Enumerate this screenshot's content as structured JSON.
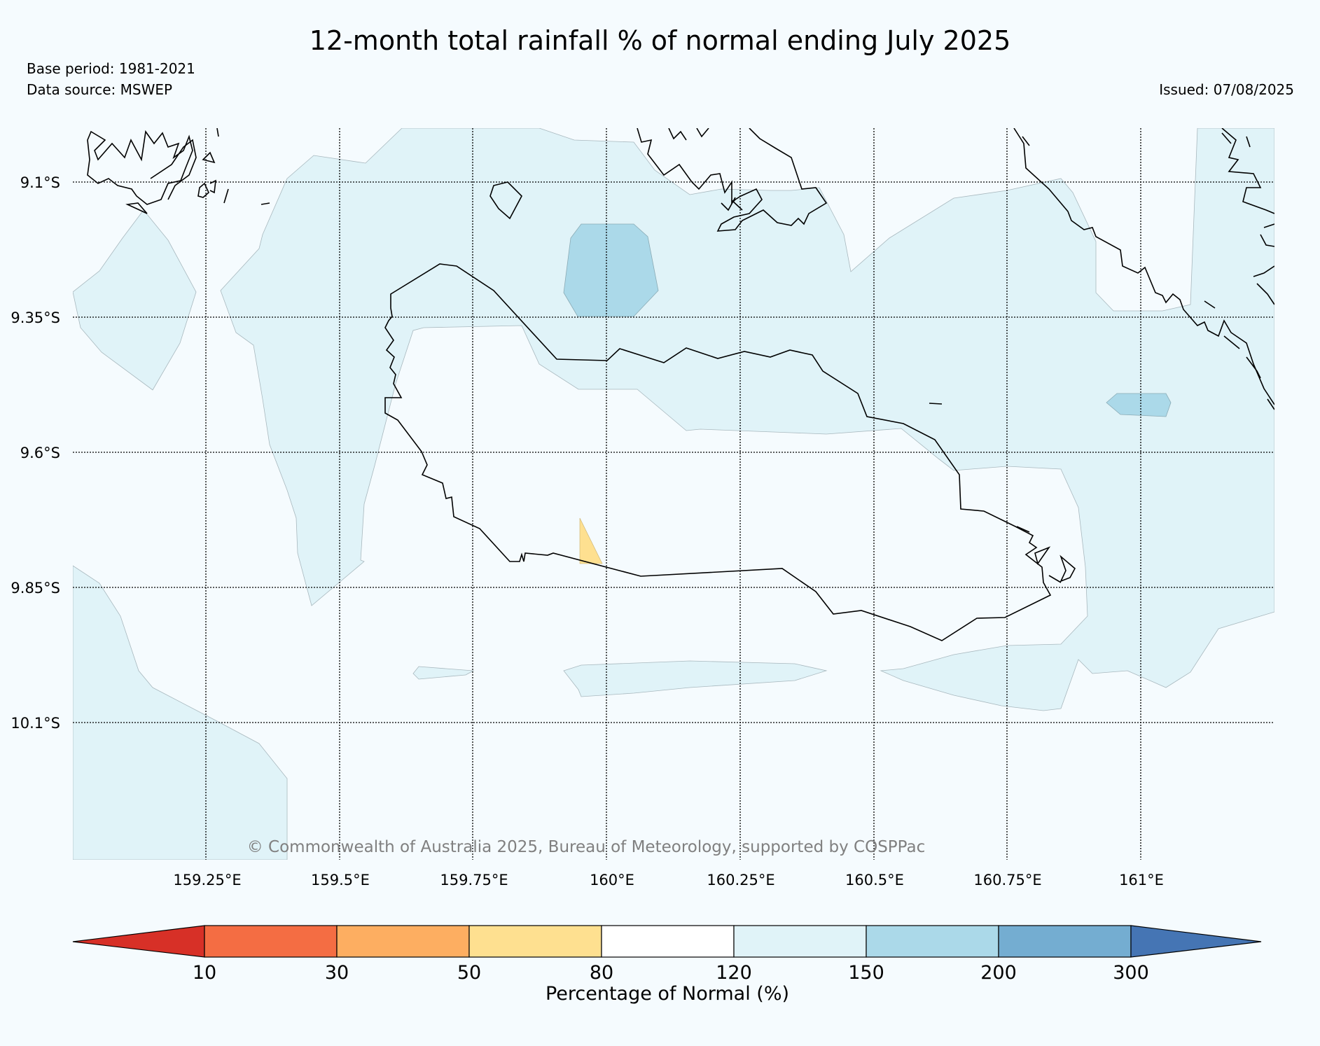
{
  "header": {
    "title": "12-month total rainfall % of normal ending July 2025",
    "base_period": "Base period: 1981-2021",
    "data_source": "Data source: MSWEP",
    "issued": "Issued: 07/08/2025"
  },
  "map": {
    "latitudes": [
      "9.1°S",
      "9.35°S",
      "9.6°S",
      "9.85°S",
      "10.1°S"
    ],
    "longitudes": [
      "159.25°E",
      "159.5°E",
      "159.75°E",
      "160°E",
      "160.25°E",
      "160.5°E",
      "160.75°E",
      "161°E"
    ],
    "credit": "© Commonwealth of Australia 2025, Bureau of Meteorology, supported by COSPPac",
    "colors": {
      "land_outline": "#000000",
      "class_120_150": "#e0f3f8",
      "class_150_200": "#abd9e9",
      "class_50_80": "#fee090"
    }
  },
  "colorbar": {
    "title": "Percentage of Normal (%)",
    "ticks": [
      "10",
      "30",
      "50",
      "80",
      "120",
      "150",
      "200",
      "300"
    ],
    "colors": [
      "#d73027",
      "#f46d43",
      "#fdae61",
      "#fee090",
      "#ffffff",
      "#e0f3f8",
      "#abd9e9",
      "#74add1",
      "#4575b4"
    ]
  }
}
